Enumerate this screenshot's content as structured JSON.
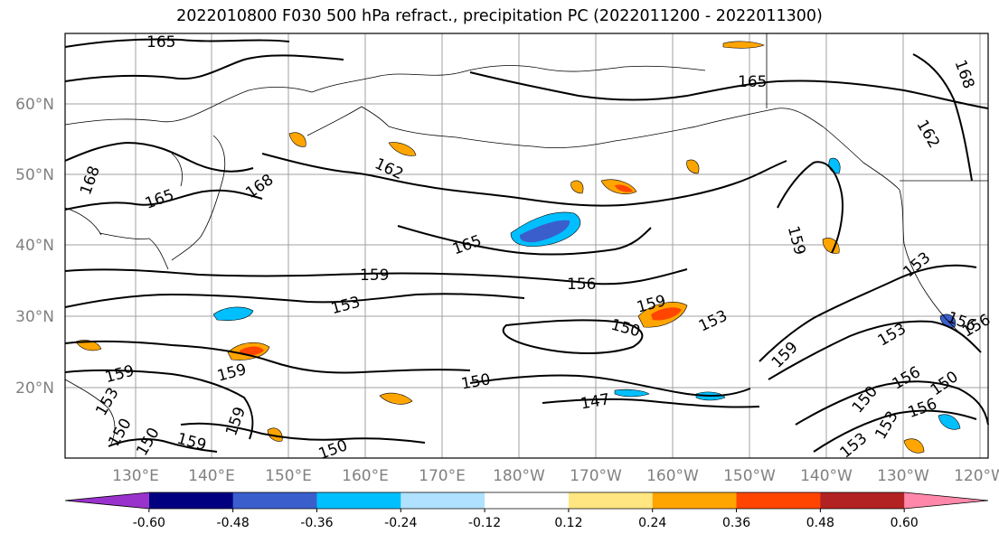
{
  "title": "2022010800 F030 500 hPa refract., precipitation PC (2022011200 - 2022011300)",
  "lat_labels": [
    "60°N",
    "50°N",
    "40°N",
    "30°N",
    "20°N"
  ],
  "lon_labels": [
    "130°E",
    "140°E",
    "150°E",
    "160°E",
    "170°E",
    "180°W",
    "170°W",
    "160°W",
    "150°W",
    "140°W",
    "130°W",
    "120°W"
  ],
  "contour_labels": [
    "165",
    "165",
    "168",
    "168",
    "165",
    "168",
    "162",
    "162",
    "165",
    "159",
    "156",
    "153",
    "159",
    "159",
    "153",
    "150",
    "150",
    "147",
    "159",
    "153",
    "159",
    "156",
    "150",
    "150",
    "153",
    "156",
    "159",
    "153",
    "159",
    "150",
    "153",
    "150",
    "150",
    "156",
    "153",
    "159",
    "156"
  ],
  "colorbar": {
    "ticks": [
      "-0.60",
      "-0.48",
      "-0.36",
      "-0.24",
      "-0.12",
      "0.12",
      "0.24",
      "0.36",
      "0.48",
      "0.60"
    ],
    "colors": [
      "#9932cc",
      "#000080",
      "#3a5fcd",
      "#00bfff",
      "#b0e2ff",
      "#ffffff",
      "#ffe680",
      "#ffa500",
      "#ff4500",
      "#b22222",
      "#ff88aa"
    ]
  }
}
